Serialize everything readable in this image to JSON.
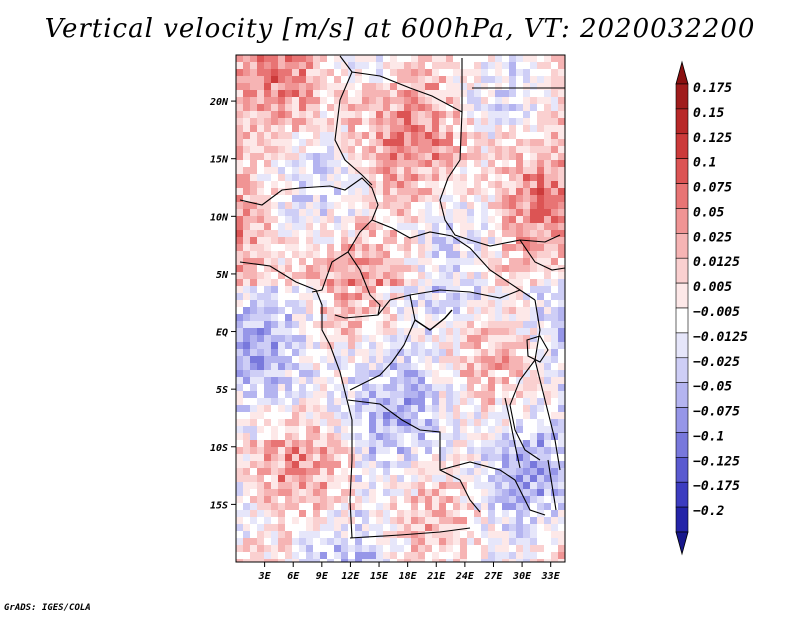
{
  "chart_data": {
    "type": "heatmap",
    "title": "Vertical velocity [m/s] at 600hPa, VT: 2020032200",
    "xlabel": "",
    "ylabel": "",
    "x_range": [
      0,
      34.5
    ],
    "y_range": [
      -20,
      24
    ],
    "x_ticks": [
      {
        "value": 3,
        "label": "3E"
      },
      {
        "value": 6,
        "label": "6E"
      },
      {
        "value": 9,
        "label": "9E"
      },
      {
        "value": 12,
        "label": "12E"
      },
      {
        "value": 15,
        "label": "15E"
      },
      {
        "value": 18,
        "label": "18E"
      },
      {
        "value": 21,
        "label": "21E"
      },
      {
        "value": 24,
        "label": "24E"
      },
      {
        "value": 27,
        "label": "27E"
      },
      {
        "value": 30,
        "label": "30E"
      },
      {
        "value": 33,
        "label": "33E"
      }
    ],
    "y_ticks": [
      {
        "value": 20,
        "label": "20N"
      },
      {
        "value": 15,
        "label": "15N"
      },
      {
        "value": 10,
        "label": "10N"
      },
      {
        "value": 5,
        "label": "5N"
      },
      {
        "value": 0,
        "label": "EQ"
      },
      {
        "value": -5,
        "label": "5S"
      },
      {
        "value": -10,
        "label": "10S"
      },
      {
        "value": -15,
        "label": "15S"
      }
    ],
    "colorbar": {
      "levels": [
        {
          "label": "0.175",
          "color": "#a01c1c"
        },
        {
          "label": "0.15",
          "color": "#b82828"
        },
        {
          "label": "0.125",
          "color": "#cc3a3a"
        },
        {
          "label": "0.1",
          "color": "#dc5454"
        },
        {
          "label": "0.075",
          "color": "#e87474"
        },
        {
          "label": "0.05",
          "color": "#f09494"
        },
        {
          "label": "0.025",
          "color": "#f6b4b4"
        },
        {
          "label": "0.0125",
          "color": "#fad0d0"
        },
        {
          "label": "0.005",
          "color": "#fde8e8"
        },
        {
          "label": "−0.005",
          "color": "#ffffff"
        },
        {
          "label": "−0.0125",
          "color": "#e6e6fa"
        },
        {
          "label": "−0.025",
          "color": "#ceceF6"
        },
        {
          "label": "−0.05",
          "color": "#b4b4f0"
        },
        {
          "label": "−0.075",
          "color": "#9696e8"
        },
        {
          "label": "−0.1",
          "color": "#7878dc"
        },
        {
          "label": "−0.125",
          "color": "#5a5ad0"
        },
        {
          "label": "−0.175",
          "color": "#3c3cc0"
        },
        {
          "label": "−0.2",
          "color": "#2424a8"
        }
      ],
      "top_arrow_color": "#8a1010",
      "bottom_arrow_color": "#18188c"
    }
  },
  "footer": {
    "credit": "GrADS: IGES/COLA"
  }
}
